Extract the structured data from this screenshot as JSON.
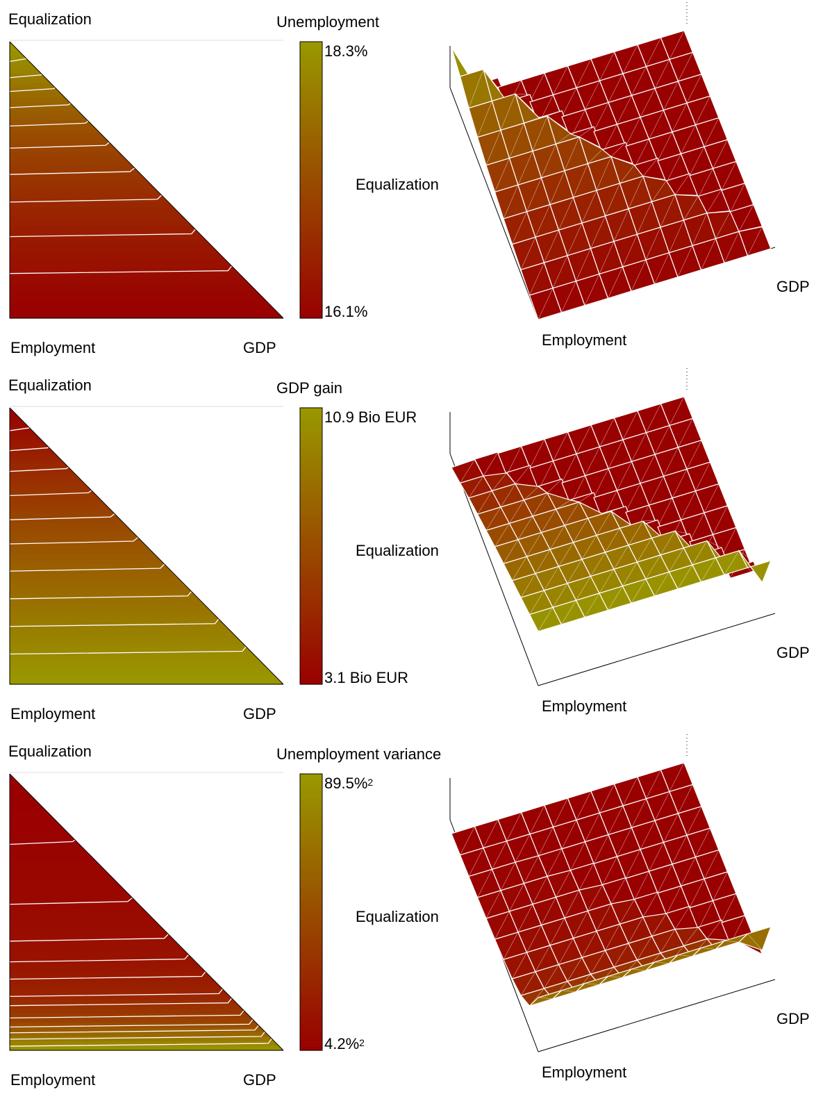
{
  "colors": {
    "low": "#990000",
    "high": "#999900",
    "contour": "#ffffff",
    "outline": "#000000"
  },
  "chart_data": [
    {
      "type": "heatmap",
      "title": "Unemployment",
      "corner_labels": {
        "top": "Equalization",
        "bottom_left": "Employment",
        "bottom_right": "GDP"
      },
      "surface_labels": {
        "left": "Equalization",
        "right": "GDP",
        "bottom": "Employment"
      },
      "colorbar": {
        "max_label": "18.3%",
        "min_label": "16.1%",
        "sup": ""
      },
      "range": [
        16.1,
        18.3
      ],
      "ternary_weights": [
        "Employment",
        "GDP",
        "Equalization"
      ],
      "contour_levels": [
        16.3,
        16.5,
        16.7,
        16.9,
        17.1,
        17.3,
        17.5,
        17.7,
        17.9,
        18.1
      ],
      "profile_by_equalization": [
        16.1,
        16.2,
        16.35,
        16.5,
        16.65,
        16.85,
        17.05,
        17.3,
        17.6,
        18.0,
        18.3
      ],
      "profile_by_gdp": [
        0,
        0,
        0,
        0,
        0,
        0,
        0,
        0,
        0,
        0,
        0
      ]
    },
    {
      "type": "heatmap",
      "title": "GDP gain",
      "corner_labels": {
        "top": "Equalization",
        "bottom_left": "Employment",
        "bottom_right": "GDP"
      },
      "surface_labels": {
        "left": "Equalization",
        "right": "GDP",
        "bottom": "Employment"
      },
      "colorbar": {
        "max_label": "10.9 Bio EUR",
        "min_label": "3.1 Bio EUR",
        "sup": ""
      },
      "range": [
        3.1,
        10.9
      ],
      "ternary_weights": [
        "Employment",
        "GDP",
        "Equalization"
      ],
      "contour_levels": [
        3.8,
        4.5,
        5.2,
        5.9,
        6.6,
        7.3,
        8.0,
        8.7,
        9.4,
        10.1
      ],
      "profile_by_equalization": [
        10.9,
        10.2,
        9.5,
        8.8,
        8.1,
        7.4,
        6.6,
        5.8,
        5.0,
        4.0,
        3.1
      ],
      "profile_by_gdp": [
        0,
        0,
        0,
        0,
        0,
        0,
        0,
        0,
        0,
        0,
        0
      ]
    },
    {
      "type": "heatmap",
      "title": "Unemployment variance",
      "corner_labels": {
        "top": "Equalization",
        "bottom_left": "Employment",
        "bottom_right": "GDP"
      },
      "surface_labels": {
        "left": "Equalization",
        "right": "GDP",
        "bottom": "Employment"
      },
      "colorbar": {
        "max_label": "89.5%",
        "min_label": "4.2%",
        "sup": "2"
      },
      "range": [
        4.2,
        89.5
      ],
      "ternary_weights": [
        "Employment",
        "GDP",
        "Equalization"
      ],
      "contour_levels": [
        6,
        9,
        12,
        15,
        19,
        24,
        30,
        38,
        47,
        57,
        68,
        80
      ],
      "profile_by_equalization": [
        89.5,
        42,
        24,
        16,
        12,
        9.5,
        8,
        6.5,
        5.5,
        4.8,
        4.2
      ],
      "profile_by_gdp": [
        0,
        0,
        0,
        0,
        0,
        0,
        0,
        0,
        0,
        0,
        0
      ]
    }
  ]
}
